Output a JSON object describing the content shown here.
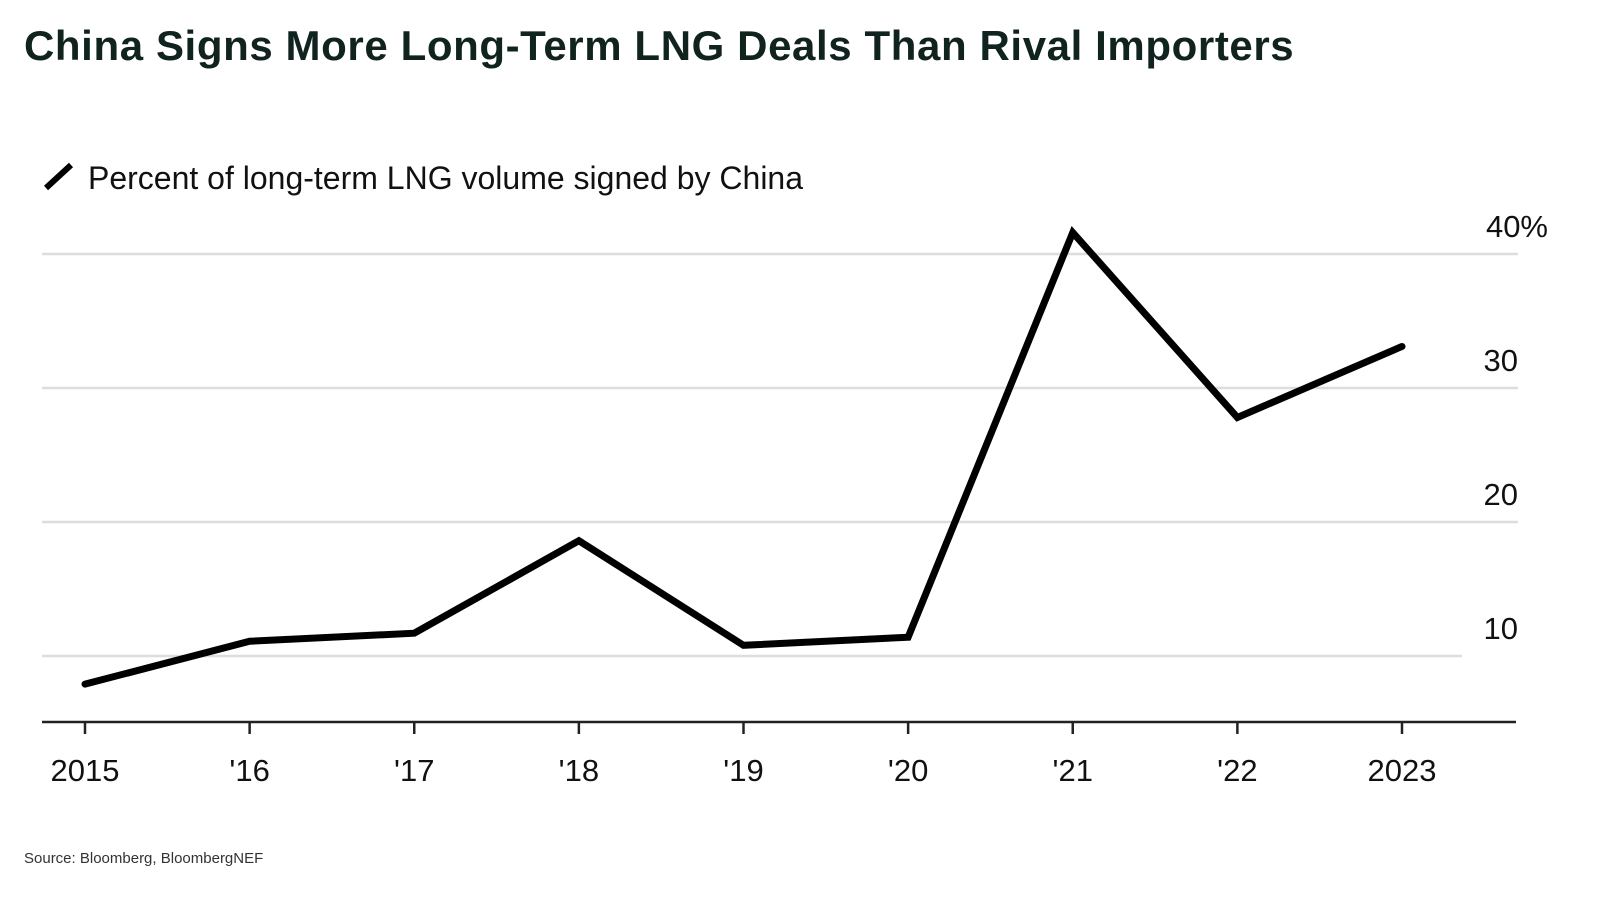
{
  "chart_data": {
    "type": "line",
    "title": "China Signs More Long-Term LNG Deals Than Rival Importers",
    "source": "Source: Bloomberg, BloombergNEF",
    "legend": {
      "placement": "top-left",
      "label": "Percent of long-term LNG volume signed by China"
    },
    "x": [
      2015,
      2016,
      2017,
      2018,
      2019,
      2020,
      2021,
      2022,
      2023
    ],
    "x_tick_labels": [
      "2015",
      "'16",
      "'17",
      "'18",
      "'19",
      "'20",
      "'21",
      "'22",
      "2023"
    ],
    "series": [
      {
        "name": "Percent of long-term LNG volume signed by China",
        "values": [
          7.9,
          11.1,
          11.7,
          18.6,
          10.8,
          11.4,
          41.6,
          27.8,
          33.1
        ]
      }
    ],
    "y_ticks": [
      10,
      20,
      30,
      40
    ],
    "y_tick_labels": [
      "10",
      "20",
      "30",
      "40%"
    ],
    "ylim": [
      5,
      42
    ],
    "y_axis_side": "right",
    "grid": true,
    "colors": {
      "line": "#000000",
      "grid": "#dddddd",
      "title": "#10231f"
    }
  }
}
